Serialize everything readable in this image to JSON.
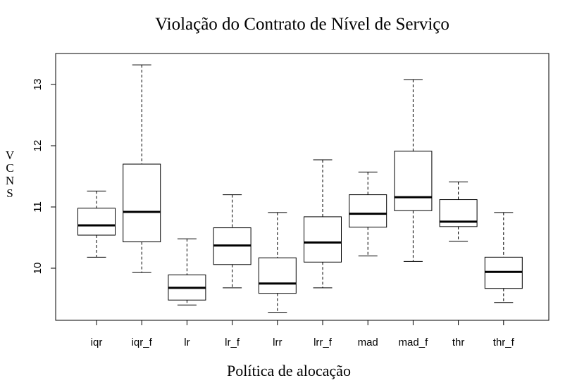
{
  "chart_data": {
    "type": "boxplot",
    "title": "Violação do Contrato de Nível de Serviço",
    "xlabel": "Política de alocação",
    "ylabel": "VCNS",
    "ylim": [
      9.1,
      13.6
    ],
    "yticks": [
      10,
      11,
      12,
      13
    ],
    "grid": false,
    "categories": [
      "iqr",
      "iqr_f",
      "lr",
      "lr_f",
      "lrr",
      "lrr_f",
      "mad",
      "mad_f",
      "thr",
      "thr_f"
    ],
    "boxes": [
      {
        "category": "iqr",
        "whisker_low": 10.18,
        "q1": 10.54,
        "median": 10.7,
        "q3": 10.98,
        "whisker_high": 11.26
      },
      {
        "category": "iqr_f",
        "whisker_low": 9.93,
        "q1": 10.43,
        "median": 10.92,
        "q3": 11.7,
        "whisker_high": 13.32
      },
      {
        "category": "lr",
        "whisker_low": 9.4,
        "q1": 9.48,
        "median": 9.68,
        "q3": 9.89,
        "whisker_high": 10.48
      },
      {
        "category": "lr_f",
        "whisker_low": 9.68,
        "q1": 10.06,
        "median": 10.37,
        "q3": 10.66,
        "whisker_high": 11.2
      },
      {
        "category": "lrr",
        "whisker_low": 9.28,
        "q1": 9.59,
        "median": 9.75,
        "q3": 10.17,
        "whisker_high": 10.91
      },
      {
        "category": "lrr_f",
        "whisker_low": 9.68,
        "q1": 10.1,
        "median": 10.42,
        "q3": 10.84,
        "whisker_high": 11.77
      },
      {
        "category": "mad",
        "whisker_low": 10.2,
        "q1": 10.67,
        "median": 10.89,
        "q3": 11.2,
        "whisker_high": 11.57
      },
      {
        "category": "mad_f",
        "whisker_low": 10.11,
        "q1": 10.94,
        "median": 11.16,
        "q3": 11.91,
        "whisker_high": 13.08
      },
      {
        "category": "thr",
        "whisker_low": 10.44,
        "q1": 10.68,
        "median": 10.76,
        "q3": 11.12,
        "whisker_high": 11.41
      },
      {
        "category": "thr_f",
        "whisker_low": 9.44,
        "q1": 9.67,
        "median": 9.94,
        "q3": 10.18,
        "whisker_high": 10.91
      }
    ]
  }
}
